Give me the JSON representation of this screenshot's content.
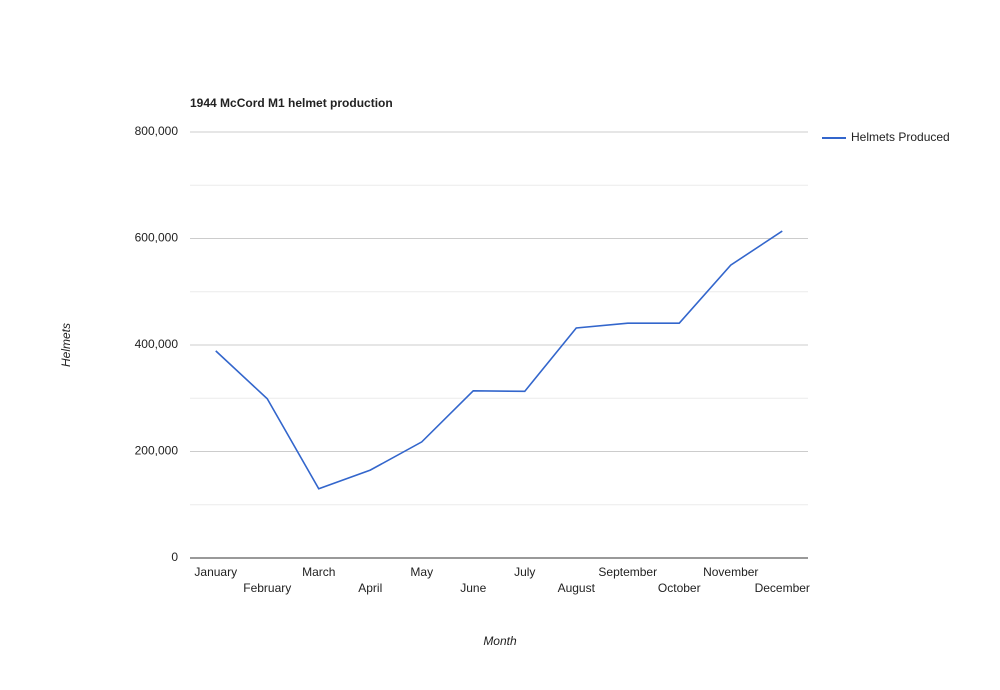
{
  "chart_data": {
    "type": "line",
    "title": "1944 McCord M1 helmet production",
    "x_label": "Month",
    "y_label": "Helmets",
    "categories": [
      "January",
      "February",
      "March",
      "April",
      "May",
      "June",
      "July",
      "August",
      "September",
      "October",
      "November",
      "December"
    ],
    "series": [
      {
        "name": "Helmets Produced",
        "color": "#3366cc",
        "values": [
          389000,
          299000,
          130000,
          165000,
          218000,
          314000,
          313000,
          432000,
          441000,
          441000,
          550000,
          614000
        ]
      }
    ],
    "ylim": [
      0,
      800000
    ],
    "yticks": [
      0,
      {
        "value": 200000,
        "label": "200,000"
      },
      {
        "value": 400000,
        "label": "400,000"
      },
      {
        "value": 600000,
        "label": "600,000"
      },
      {
        "value": 800000,
        "label": "800,000"
      }
    ],
    "minor_yticks": [
      100000,
      300000,
      500000,
      700000
    ],
    "grid": true,
    "legend": "right"
  }
}
